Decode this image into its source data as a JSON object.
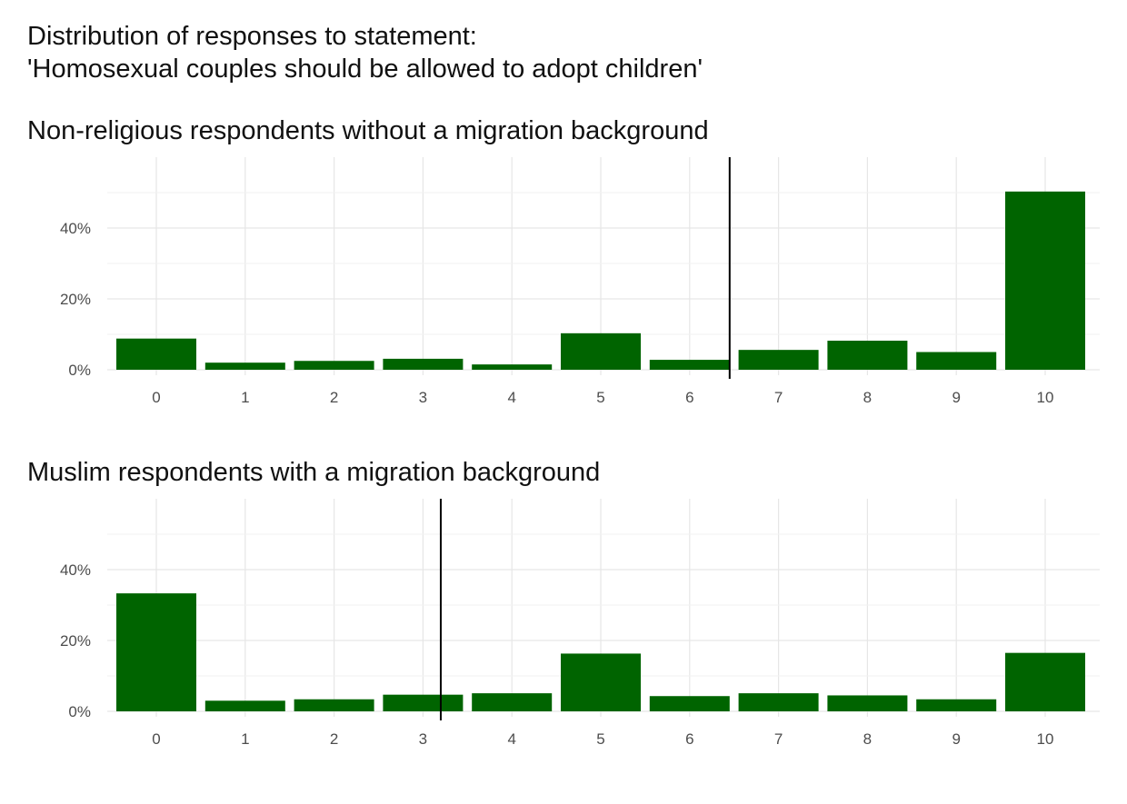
{
  "title_line1": "Distribution of responses to statement:",
  "title_line2": "'Homosexual couples should be allowed to adopt children'",
  "colors": {
    "bar": "#006400",
    "grid_major": "#e6e6e6",
    "grid_minor": "#f2f2f2",
    "marker_line": "#000000"
  },
  "chart_data": [
    {
      "type": "bar",
      "title": "Non-religious respondents without a migration background",
      "categories": [
        "0",
        "1",
        "2",
        "3",
        "4",
        "5",
        "6",
        "7",
        "8",
        "9",
        "10"
      ],
      "values": [
        8.8,
        2.0,
        2.5,
        3.1,
        1.5,
        10.3,
        2.8,
        5.6,
        8.2,
        5.0,
        50.3
      ],
      "ylim": [
        0,
        60
      ],
      "ytick_values": [
        0,
        20,
        40
      ],
      "ytick_labels": [
        "0%",
        "20%",
        "40%"
      ],
      "vline_x": 6.45,
      "grid": true
    },
    {
      "type": "bar",
      "title": "Muslim respondents with a migration background",
      "categories": [
        "0",
        "1",
        "2",
        "3",
        "4",
        "5",
        "6",
        "7",
        "8",
        "9",
        "10"
      ],
      "values": [
        33.3,
        3.0,
        3.4,
        4.7,
        5.1,
        16.3,
        4.3,
        5.1,
        4.5,
        3.4,
        16.5
      ],
      "ylim": [
        0,
        60
      ],
      "ytick_values": [
        0,
        20,
        40
      ],
      "ytick_labels": [
        "0%",
        "20%",
        "40%"
      ],
      "vline_x": 3.2,
      "grid": true
    }
  ]
}
